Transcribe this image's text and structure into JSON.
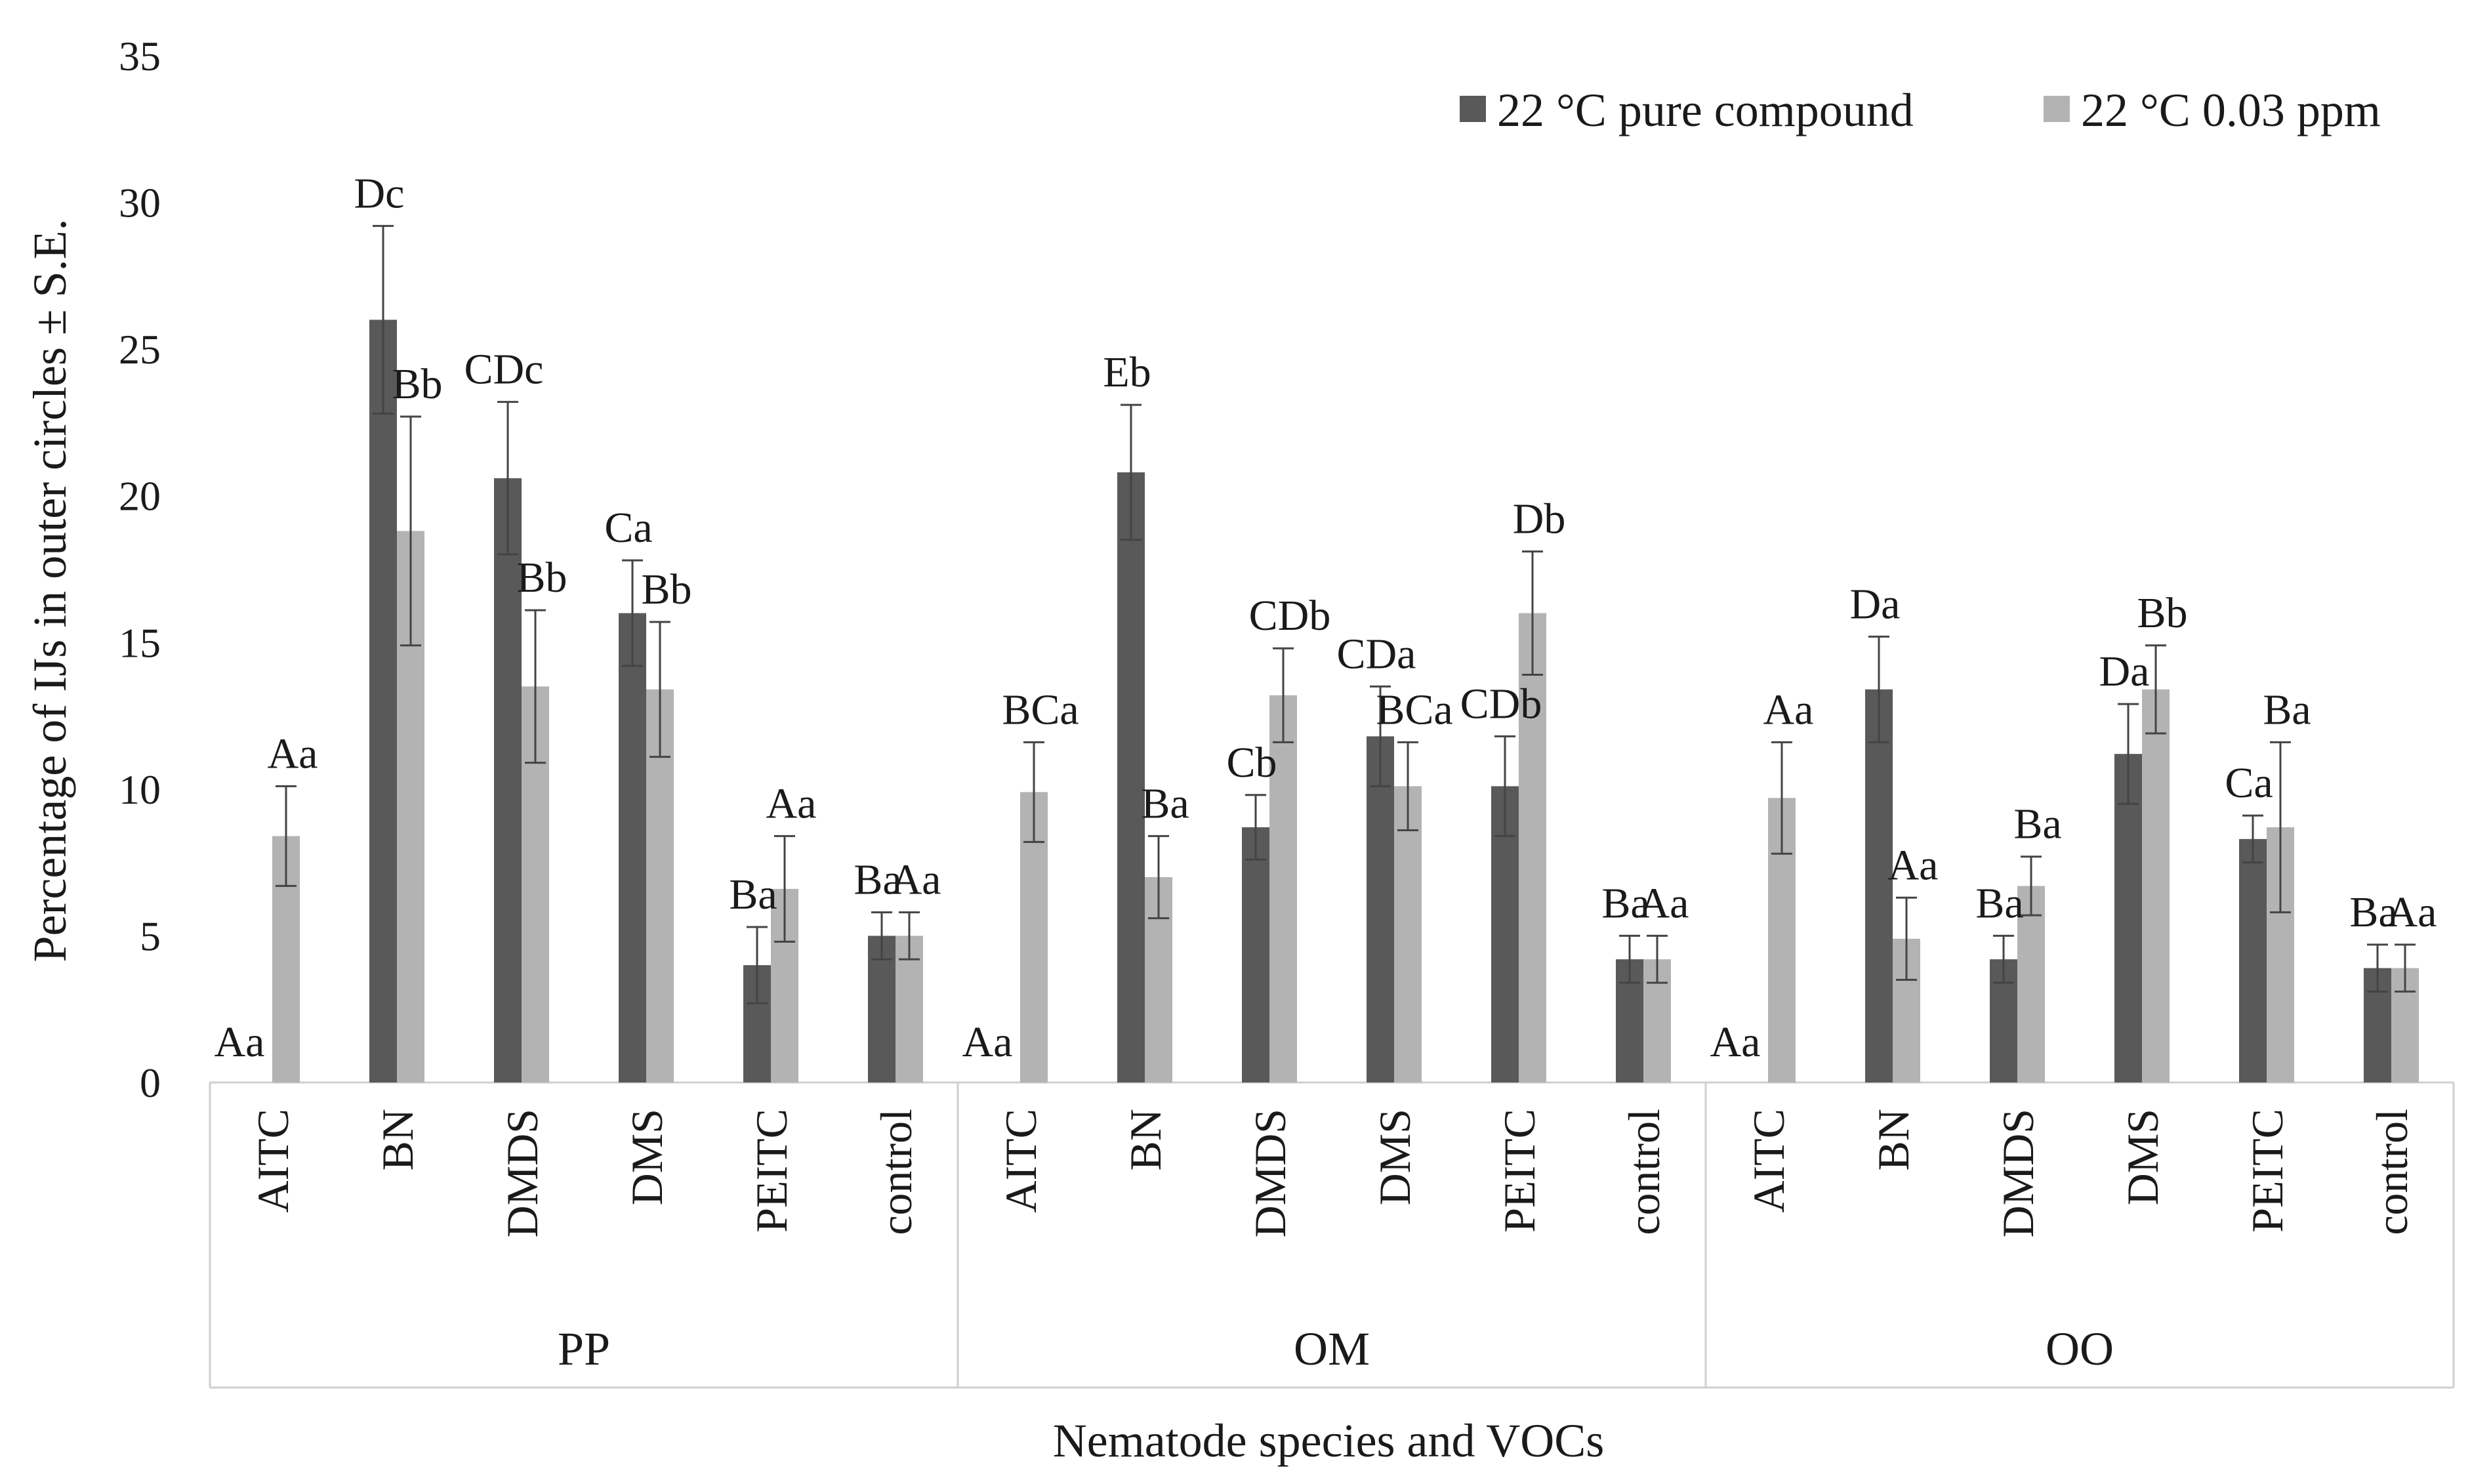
{
  "chart_data": {
    "type": "bar",
    "title": "",
    "xlabel": "Nematode species and VOCs",
    "ylabel": "Percentage of IJs in outer circles ± S.E.",
    "ylim": [
      0,
      35
    ],
    "yticks": [
      "0",
      "5",
      "10",
      "15",
      "20",
      "25",
      "30",
      "35"
    ],
    "legend_position": "top-right",
    "groups": [
      {
        "name": "PP",
        "categories": [
          "AITC",
          "BN",
          "DMDS",
          "DMS",
          "PEITC",
          "control"
        ]
      },
      {
        "name": "OM",
        "categories": [
          "AITC",
          "BN",
          "DMDS",
          "DMS",
          "PEITC",
          "control"
        ]
      },
      {
        "name": "OO",
        "categories": [
          "AITC",
          "BN",
          "DMDS",
          "DMS",
          "PEITC",
          "control"
        ]
      }
    ],
    "series": [
      {
        "name": "22 °C pure compound",
        "color": "#595959",
        "values": [
          0,
          26.0,
          20.6,
          16.0,
          4.0,
          5.0,
          0,
          20.8,
          8.7,
          11.8,
          10.1,
          4.2,
          0,
          13.4,
          4.2,
          11.2,
          8.3,
          3.9
        ],
        "errors": [
          0,
          3.2,
          2.6,
          1.8,
          1.3,
          0.8,
          0,
          2.3,
          1.1,
          1.7,
          1.7,
          0.8,
          0,
          1.8,
          0.8,
          1.7,
          0.8,
          0.8
        ],
        "labels": [
          "Aa",
          "Dc",
          "CDc",
          "Ca",
          "Ba",
          "Ba",
          "Aa",
          "Eb",
          "Cb",
          "CDa",
          "CDb",
          "Ba",
          "Aa",
          "Da",
          "Ba",
          "Da",
          "Ca",
          "Ba"
        ]
      },
      {
        "name": "22 °C 0.03 ppm",
        "color": "#b3b3b3",
        "values": [
          8.4,
          18.8,
          13.5,
          13.4,
          6.6,
          5.0,
          9.9,
          7.0,
          13.2,
          10.1,
          16.0,
          4.2,
          9.7,
          4.9,
          6.7,
          13.4,
          8.7,
          3.9
        ],
        "errors": [
          1.7,
          3.9,
          2.6,
          2.3,
          1.8,
          0.8,
          1.7,
          1.4,
          1.6,
          1.5,
          2.1,
          0.8,
          1.9,
          1.4,
          1.0,
          1.5,
          2.9,
          0.8
        ],
        "labels": [
          "Aa",
          "Bb",
          "Bb",
          "Bb",
          "Aa",
          "Aa",
          "BCa",
          "Ba",
          "CDb",
          "BCa",
          "Db",
          "Aa",
          "Aa",
          "Aa",
          "Ba",
          "Bb",
          "Ba",
          "Aa"
        ]
      }
    ]
  }
}
